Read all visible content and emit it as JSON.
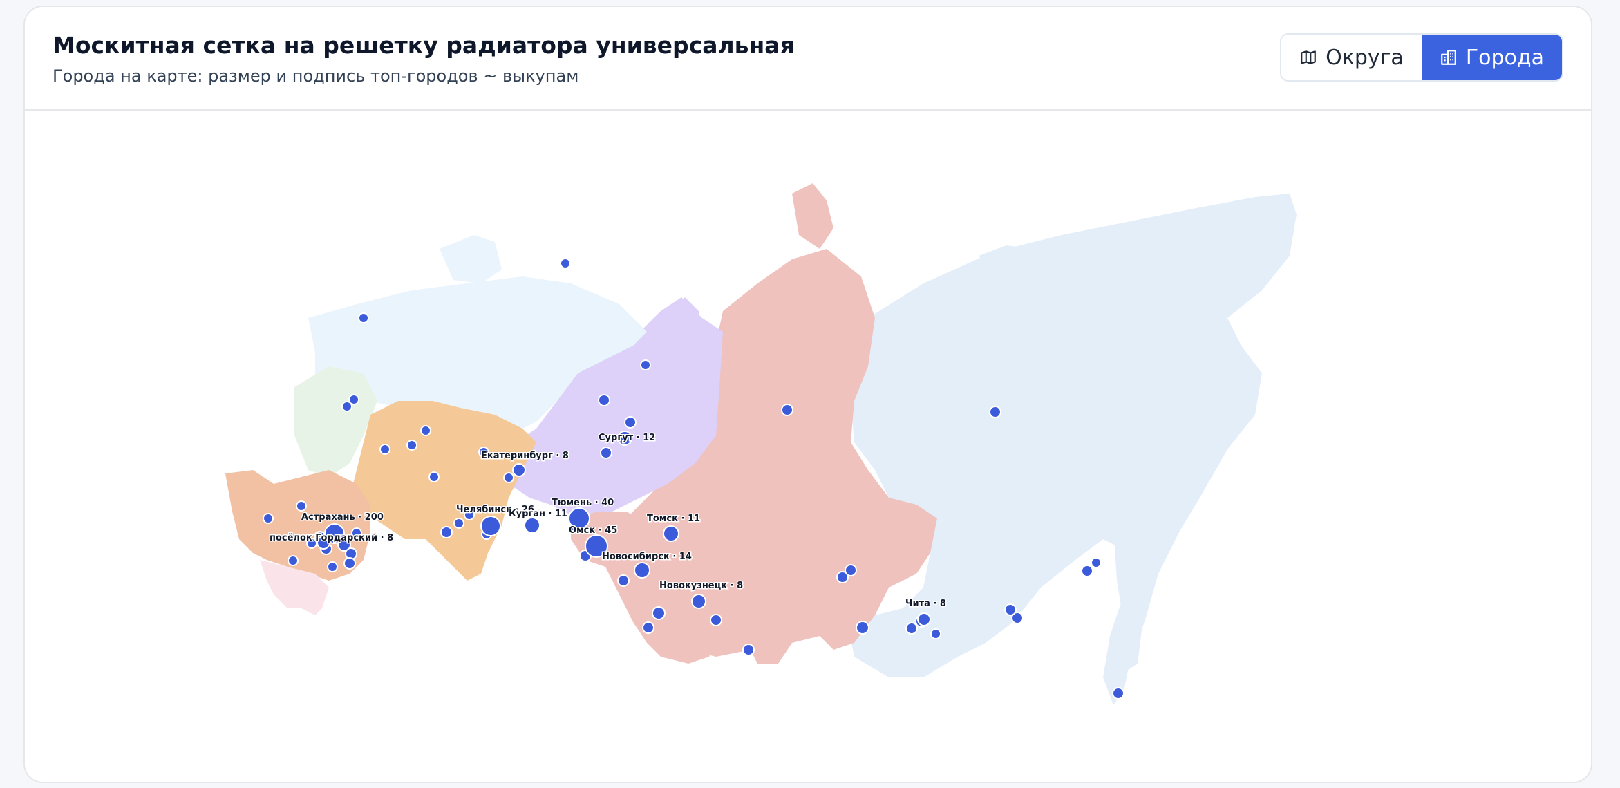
{
  "header": {
    "title": "Москитная сетка на решетку радиатора универсальная",
    "subtitle": "Города на карте: размер и подпись топ-городов ~ выкупам"
  },
  "toggle": {
    "districts_label": "Округа",
    "cities_label": "Города",
    "active": "cities"
  },
  "map": {
    "colors": {
      "north_west": "#eaf4fd",
      "north_west_green": "#e6f3e6",
      "central": "#f4c997",
      "south": "#f2c1a3",
      "north_caucasus": "#fbe3ea",
      "ural": "#ddd0f9",
      "siberia": "#efc2bd",
      "far_east": "#e4eef9",
      "city_marker": "#3b5bdb"
    },
    "labeled_cities": [
      {
        "id": "astrakhan",
        "label": "Астрахань · 200"
      },
      {
        "id": "poselok",
        "label": "посёлок Гордарский · 8"
      },
      {
        "id": "ekaterinburg",
        "label": "Екатеринбург · 8"
      },
      {
        "id": "surgut",
        "label": "Сургут · 12"
      },
      {
        "id": "chelyabinsk",
        "label": "Челябинск · 26"
      },
      {
        "id": "kurgan",
        "label": "Курган · 11"
      },
      {
        "id": "tyumen",
        "label": "Тюмень · 40"
      },
      {
        "id": "omsk",
        "label": "Омск · 45"
      },
      {
        "id": "tomsk",
        "label": "Томск · 11"
      },
      {
        "id": "novosibirsk",
        "label": "Новосибирск · 14"
      },
      {
        "id": "novokuznetsk",
        "label": "Новокузнецк · 8"
      },
      {
        "id": "chita",
        "label": "Чита · 8"
      }
    ]
  }
}
